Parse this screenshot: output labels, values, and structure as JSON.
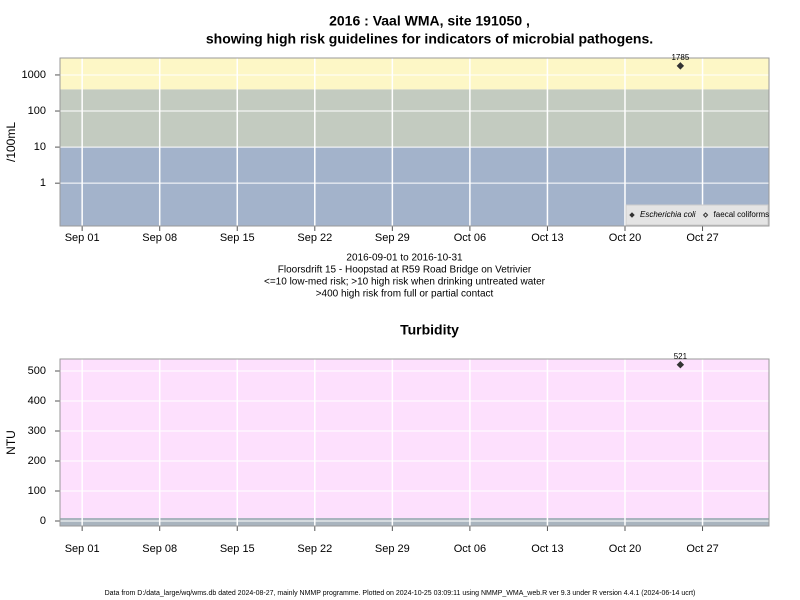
{
  "chart_data": [
    {
      "type": "scatter",
      "title": [
        "2016 : Vaal WMA, site 191050 ,",
        "showing high risk guidelines for indicators of microbial pathogens."
      ],
      "y_label": "/100mL",
      "log_y": true,
      "xlim": [
        "2016-08-30",
        "2016-11-02"
      ],
      "xticks": [
        {
          "value": "2016-09-01",
          "label": "Sep 01"
        },
        {
          "value": "2016-09-08",
          "label": "Sep 08"
        },
        {
          "value": "2016-09-15",
          "label": "Sep 15"
        },
        {
          "value": "2016-09-22",
          "label": "Sep 22"
        },
        {
          "value": "2016-09-29",
          "label": "Sep 29"
        },
        {
          "value": "2016-10-06",
          "label": "Oct 06"
        },
        {
          "value": "2016-10-13",
          "label": "Oct 13"
        },
        {
          "value": "2016-10-20",
          "label": "Oct 20"
        },
        {
          "value": "2016-10-27",
          "label": "Oct 27"
        }
      ],
      "ylim": [
        0.065,
        2950
      ],
      "yticks": [
        1,
        10,
        100,
        1000
      ],
      "grid": true,
      "bands": [
        {
          "to": 10,
          "color": "#a3b3cb"
        },
        {
          "from": 10,
          "to": 400,
          "color": "#c3cbc0"
        },
        {
          "from": 400,
          "color": "#fdf7c6"
        }
      ],
      "series": [
        {
          "name": "Escherichia coli",
          "color": "#333333",
          "filled": true,
          "x": [
            "2016-10-25"
          ],
          "values": [
            1785
          ]
        },
        {
          "name": "faecal coliforms",
          "color": "#333333",
          "filled": false,
          "x": [],
          "values": []
        }
      ],
      "legend": "bottom-right",
      "notes": [
        "2016-09-01 to 2016-10-31",
        "Floorsdrift 15 - Hoopstad at R59 Road Bridge on Vetrivier",
        "<=10 low-med risk; >10 high risk when drinking untreated water",
        ">400 high risk from full or partial contact"
      ]
    },
    {
      "type": "scatter",
      "title": [
        "Turbidity"
      ],
      "y_label": "NTU",
      "log_y": false,
      "xlim": [
        "2016-08-30",
        "2016-11-02"
      ],
      "xticks": [
        {
          "value": "2016-09-01",
          "label": "Sep 01"
        },
        {
          "value": "2016-09-08",
          "label": "Sep 08"
        },
        {
          "value": "2016-09-15",
          "label": "Sep 15"
        },
        {
          "value": "2016-09-22",
          "label": "Sep 22"
        },
        {
          "value": "2016-09-29",
          "label": "Sep 29"
        },
        {
          "value": "2016-10-06",
          "label": "Oct 06"
        },
        {
          "value": "2016-10-13",
          "label": "Oct 13"
        },
        {
          "value": "2016-10-20",
          "label": "Oct 20"
        },
        {
          "value": "2016-10-27",
          "label": "Oct 27"
        }
      ],
      "ylim": [
        -16.7,
        540
      ],
      "yticks": [
        0,
        100,
        200,
        300,
        400,
        500
      ],
      "grid": true,
      "bands": [
        {
          "to": 10,
          "color": "#a9b4be"
        },
        {
          "from": 10,
          "color": "#fde0fd"
        }
      ],
      "series": [
        {
          "color": "#333333",
          "filled": true,
          "x": [
            "2016-10-25"
          ],
          "values": [
            521
          ]
        }
      ]
    }
  ],
  "footer": "Data from D:/data_large/wq/wms.db dated 2024-08-27, mainly NMMP programme. Plotted on 2024-10-25 03:09:11 using NMMP_WMA_web.R ver 9.3 under R version 4.4.1 (2024-06-14 ucrt)"
}
